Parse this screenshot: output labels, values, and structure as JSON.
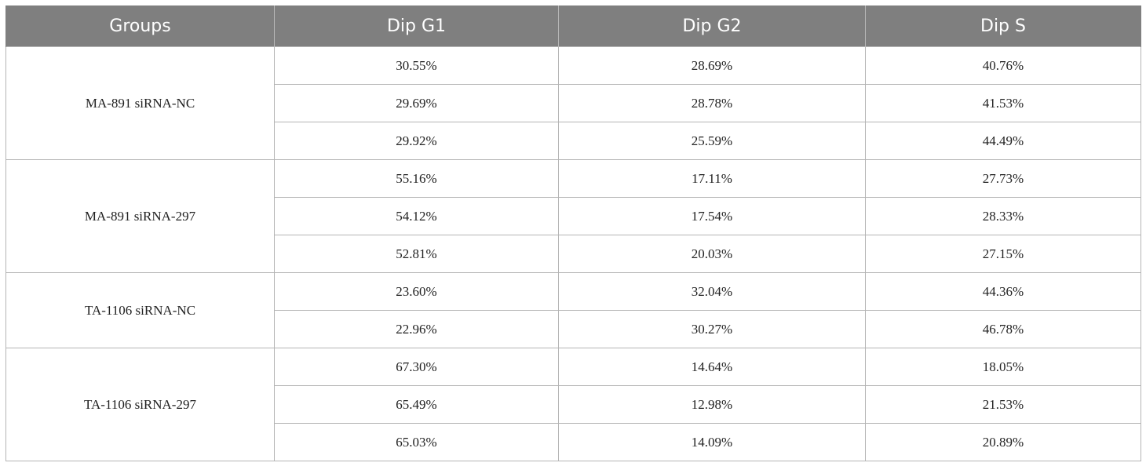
{
  "headers": {
    "groups": "Groups",
    "dip_g1": "Dip G1",
    "dip_g2": "Dip G2",
    "dip_s": "Dip S"
  },
  "groups": [
    {
      "name": "MA-891 siRNA-NC",
      "rows": [
        {
          "g1": "30.55%",
          "g2": "28.69%",
          "s": "40.76%"
        },
        {
          "g1": "29.69%",
          "g2": "28.78%",
          "s": "41.53%"
        },
        {
          "g1": "29.92%",
          "g2": "25.59%",
          "s": "44.49%"
        }
      ]
    },
    {
      "name": "MA-891 siRNA-297",
      "rows": [
        {
          "g1": "55.16%",
          "g2": "17.11%",
          "s": "27.73%"
        },
        {
          "g1": "54.12%",
          "g2": "17.54%",
          "s": "28.33%"
        },
        {
          "g1": "52.81%",
          "g2": "20.03%",
          "s": "27.15%"
        }
      ]
    },
    {
      "name": "TA-1106 siRNA-NC",
      "rows": [
        {
          "g1": "23.60%",
          "g2": "32.04%",
          "s": "44.36%"
        },
        {
          "g1": "22.96%",
          "g2": "30.27%",
          "s": "46.78%"
        }
      ]
    },
    {
      "name": "TA-1106 siRNA-297",
      "rows": [
        {
          "g1": "67.30%",
          "g2": "14.64%",
          "s": "18.05%"
        },
        {
          "g1": "65.49%",
          "g2": "12.98%",
          "s": "21.53%"
        },
        {
          "g1": "65.03%",
          "g2": "14.09%",
          "s": "20.89%"
        }
      ]
    }
  ]
}
